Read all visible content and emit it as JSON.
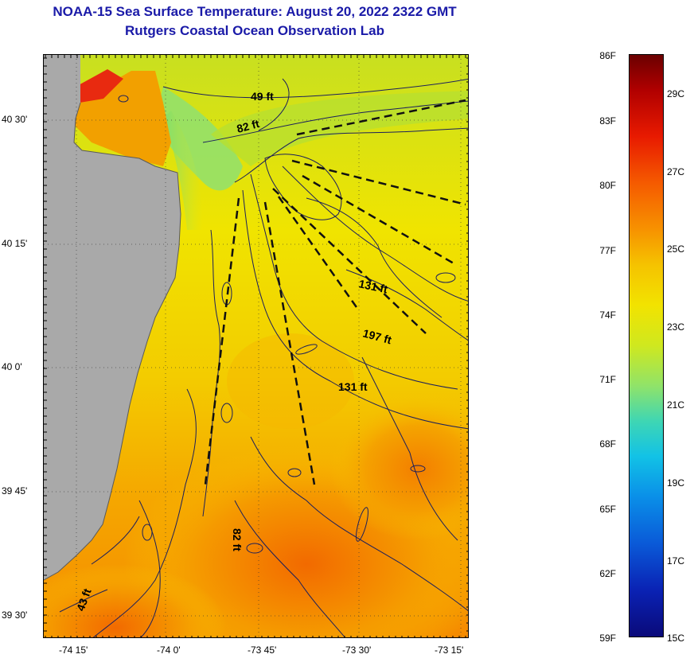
{
  "title_line1": "NOAA-15 Sea Surface Temperature:  August 20, 2022 2322 GMT",
  "title_line2": "Rutgers Coastal Ocean Observation Lab",
  "lat_labels": [
    "40 30'",
    "40 15'",
    "40 0'",
    "39 45'",
    "39 30'"
  ],
  "lon_labels": [
    "-74 15'",
    "-74 0'",
    "-73 45'",
    "-73 30'",
    "-73 15'"
  ],
  "contour_labels": [
    "49 ft",
    "82 ft",
    "131 ft",
    "197 ft",
    "131 ft",
    "82 ft",
    "43 ft"
  ],
  "colorbar": {
    "fahrenheit": [
      "86F",
      "83F",
      "80F",
      "77F",
      "74F",
      "71F",
      "68F",
      "65F",
      "62F",
      "59F"
    ],
    "celsius": [
      "29C",
      "27C",
      "25C",
      "23C",
      "21C",
      "19C",
      "17C",
      "15C"
    ]
  },
  "colors": {
    "title": "#1a1aa8",
    "land": "#a9a9a9",
    "contour": "#1b1f5c"
  }
}
